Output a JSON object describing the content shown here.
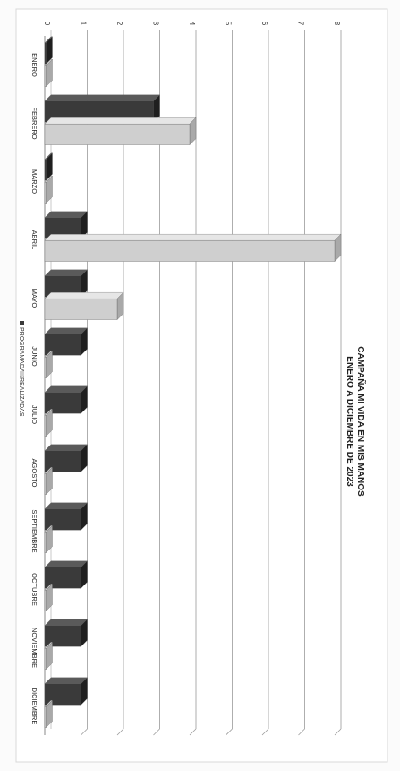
{
  "chart_data": {
    "type": "bar",
    "title": "CAMPAÑA MI VIDA EN MIS MANOS",
    "subtitle": "ENERO A DICIEMBRE DE 2023",
    "categories": [
      "ENERO",
      "FEBRERO",
      "MARZO",
      "ABRIL",
      "MAYO",
      "JUNIO",
      "JULIO",
      "AGOSTO",
      "SEPTIEMBRE",
      "OCTUBRE",
      "NOVIEMBRE",
      "DICIEMBRE"
    ],
    "series": [
      {
        "name": "PROGRAMADAS",
        "color": "#3a3a3a",
        "values": [
          0,
          3,
          0,
          1,
          1,
          1,
          1,
          1,
          1,
          1,
          1,
          1
        ]
      },
      {
        "name": "REALIZADAS",
        "color": "#cfcfcf",
        "values": [
          0,
          4,
          0,
          8,
          2,
          0,
          0,
          0,
          0,
          0,
          0,
          0
        ]
      }
    ],
    "ylim": [
      0,
      8
    ],
    "yticks": [
      "0",
      "1",
      "2",
      "3",
      "4",
      "5",
      "6",
      "7",
      "8"
    ],
    "grid": true,
    "legend": "bottom",
    "orientation": "rotated-90"
  }
}
